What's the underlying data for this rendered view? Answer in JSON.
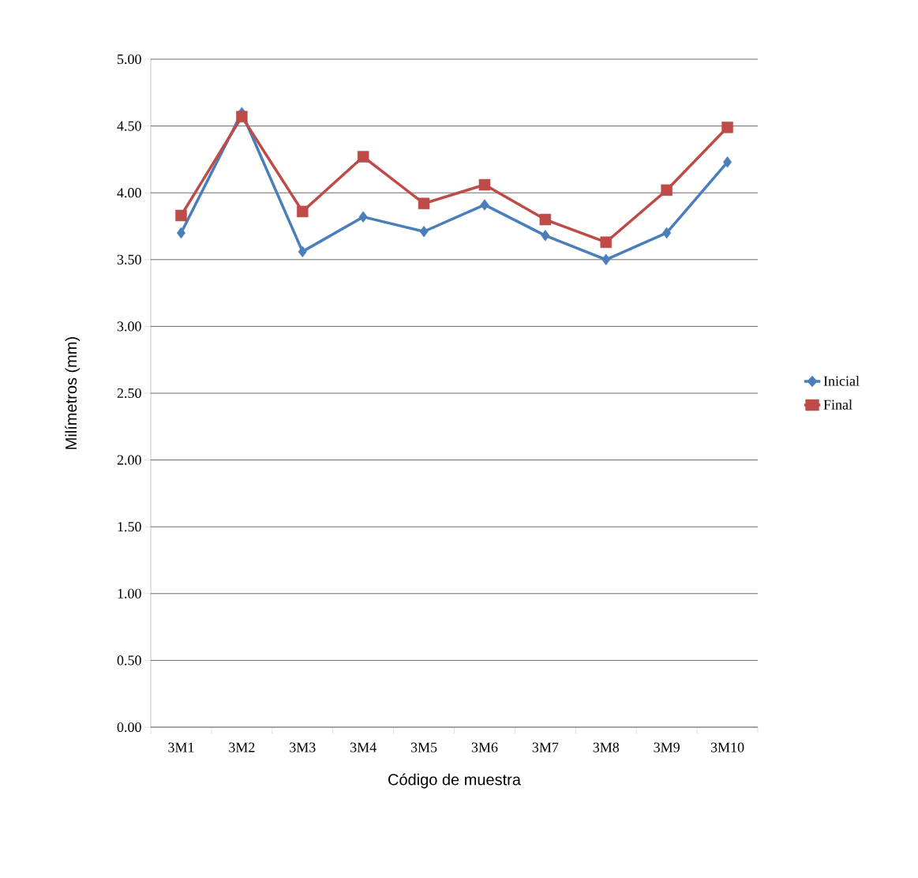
{
  "chart_data": {
    "type": "line",
    "xlabel": "Código de muestra",
    "ylabel": "Milímetros (mm)",
    "categories": [
      "3M1",
      "3M2",
      "3M3",
      "3M4",
      "3M5",
      "3M6",
      "3M7",
      "3M8",
      "3M9",
      "3M10"
    ],
    "series": [
      {
        "name": "Inicial",
        "color": "#4a7ebb",
        "marker": "diamond",
        "values": [
          3.7,
          4.6,
          3.56,
          3.82,
          3.71,
          3.91,
          3.68,
          3.5,
          3.7,
          4.23
        ]
      },
      {
        "name": "Final",
        "color": "#be4b48",
        "marker": "square",
        "values": [
          3.83,
          4.57,
          3.86,
          4.27,
          3.92,
          4.06,
          3.8,
          3.63,
          4.02,
          4.49
        ]
      }
    ],
    "ylim": [
      0,
      5
    ],
    "yticks": [
      {
        "value": 0,
        "label": "0.00"
      },
      {
        "value": 0.5,
        "label": "0.50"
      },
      {
        "value": 1,
        "label": "1.00"
      },
      {
        "value": 1.5,
        "label": "1.50"
      },
      {
        "value": 2,
        "label": "2.00"
      },
      {
        "value": 2.5,
        "label": "2.50"
      },
      {
        "value": 3,
        "label": "3.00"
      },
      {
        "value": 3.5,
        "label": "3.50"
      },
      {
        "value": 4,
        "label": "4.00"
      },
      {
        "value": 4.5,
        "label": "4.50"
      },
      {
        "value": 5,
        "label": "5.00"
      }
    ],
    "grid": "y",
    "legend": "right",
    "line_style": "solid"
  }
}
